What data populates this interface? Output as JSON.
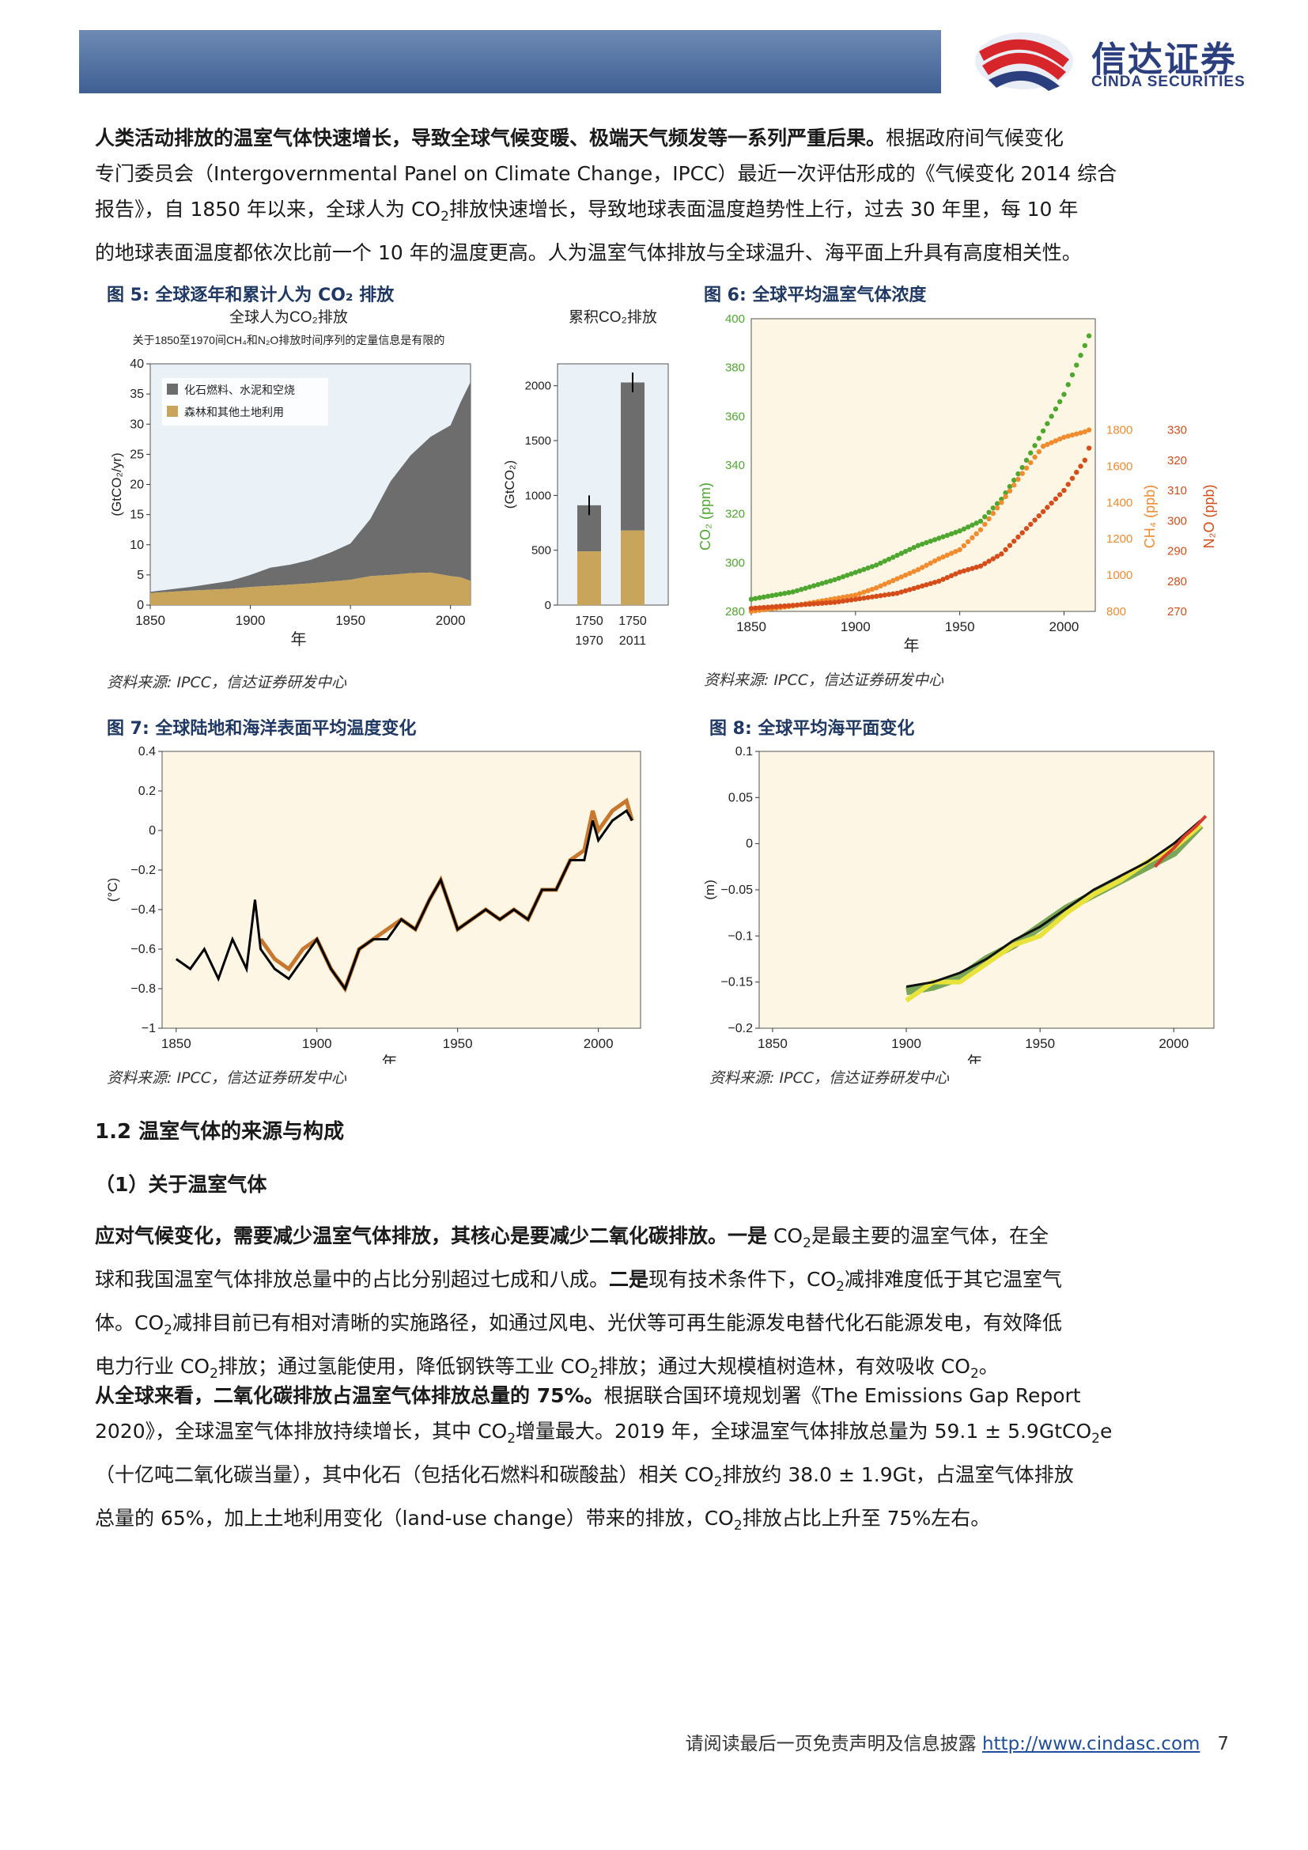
{
  "header": {
    "logo_cn": "信达证券",
    "logo_en": "CINDA SECURITIES",
    "brand_color": "#2b3f7f",
    "logo_red": "#d7262b"
  },
  "intro": {
    "lead_bold": "人类活动排放的温室气体快速增长，导致全球气候变暖、极端天气频发等一系列严重后果。",
    "l1_rest": "根据政府间气候变化",
    "l2": "专门委员会（Intergovernmental Panel on Climate Change，IPCC）最近一次评估形成的《气候变化 2014 综合",
    "l3a": "报告》，自 1850 年以来，全球人为 CO",
    "l3b": "排放快速增长，导致地球表面温度趋势性上行，过去 30 年里，每 10 年",
    "l4": "的地球表面温度都依次比前一个 10 年的温度更高。人为温室气体排放与全球温升、海平面上升具有高度相关性。",
    "sub2": "2"
  },
  "fig5": {
    "title": "图  5:  全球逐年和累计人为 CO₂ 排放",
    "source": "资料来源: IPCC，信达证券研发中心",
    "chart_data": {
      "type": "area",
      "title": "全球人为CO₂排放",
      "subtitle": "关于1850至1970间CH₄和N₂O排放时间序列的定量信息是有限的",
      "ylabel": "(GtCO₂/yr)",
      "xlabel": "年",
      "xlim": [
        1850,
        2010
      ],
      "ylim": [
        0,
        40
      ],
      "x_ticks": [
        "1850",
        "1900",
        "1950",
        "2000"
      ],
      "y_ticks": [
        "0",
        "5",
        "10",
        "15",
        "20",
        "25",
        "30",
        "35",
        "40"
      ],
      "series": [
        {
          "name": "化石燃料、水泥和空烧",
          "color": "#6d6d6d",
          "x": [
            1850,
            1870,
            1890,
            1900,
            1910,
            1920,
            1930,
            1940,
            1950,
            1960,
            1970,
            1980,
            1990,
            2000,
            2005,
            2010
          ],
          "values": [
            0.2,
            0.6,
            1.3,
            2,
            3,
            3.3,
            3.9,
            4.8,
            6,
            9.5,
            15.5,
            19.5,
            22.5,
            25,
            29,
            33
          ]
        },
        {
          "name": "森林和其他土地利用",
          "color": "#c8a55a",
          "x": [
            1850,
            1870,
            1890,
            1900,
            1910,
            1920,
            1930,
            1940,
            1950,
            1960,
            1970,
            1980,
            1990,
            2000,
            2005,
            2010
          ],
          "values": [
            2,
            2.4,
            2.7,
            3,
            3.2,
            3.4,
            3.6,
            3.9,
            4.2,
            4.8,
            5,
            5.3,
            5.4,
            4.8,
            4.6,
            4
          ]
        }
      ],
      "cumulative": {
        "title": "累积CO₂排放",
        "ylabel": "(GtCO₂)",
        "ylim": [
          0,
          2200
        ],
        "y_ticks": [
          "0",
          "500",
          "1000",
          "1500",
          "2000"
        ],
        "categories": [
          "1750\n1970",
          "1750\n2011"
        ],
        "fossil": [
          420,
          1350
        ],
        "land": [
          490,
          680
        ]
      }
    }
  },
  "fig6": {
    "title": "图  6:  全球平均温室气体浓度",
    "source": "资料来源: IPCC，信达证券研发中心",
    "chart_data": {
      "type": "scatter",
      "xlabel": "年",
      "xlim": [
        1850,
        2015
      ],
      "x_ticks": [
        "1850",
        "1900",
        "1950",
        "2000"
      ],
      "co2": {
        "label": "CO₂ (ppm)",
        "ylim": [
          280,
          400
        ],
        "ticks": [
          "280",
          "300",
          "320",
          "340",
          "360",
          "380",
          "400"
        ],
        "color": "#4ea72e",
        "x": [
          1850,
          1870,
          1890,
          1900,
          1910,
          1920,
          1930,
          1940,
          1950,
          1960,
          1970,
          1980,
          1990,
          2000,
          2010,
          2012
        ],
        "values": [
          285,
          288,
          293,
          296,
          299,
          303,
          307,
          310,
          313,
          317,
          326,
          339,
          354,
          369,
          389,
          393
        ]
      },
      "ch4": {
        "label": "CH₄ (ppb)",
        "ylim": [
          800,
          1800
        ],
        "ticks": [
          "800",
          "1000",
          "1200",
          "1400",
          "1600",
          "1800"
        ],
        "color": "#f28a2e",
        "x": [
          1850,
          1870,
          1890,
          1900,
          1910,
          1920,
          1930,
          1940,
          1950,
          1960,
          1970,
          1980,
          1990,
          2000,
          2010,
          2012
        ],
        "values": [
          800,
          830,
          870,
          890,
          930,
          980,
          1030,
          1090,
          1140,
          1250,
          1400,
          1560,
          1710,
          1760,
          1790,
          1800
        ]
      },
      "n2o": {
        "label": "N₂O (ppb)",
        "ylim": [
          270,
          330
        ],
        "ticks": [
          "270",
          "280",
          "290",
          "300",
          "310",
          "320",
          "330"
        ],
        "color": "#d64d1a",
        "x": [
          1850,
          1870,
          1890,
          1900,
          1910,
          1920,
          1930,
          1940,
          1950,
          1960,
          1970,
          1980,
          1990,
          2000,
          2010,
          2012
        ],
        "values": [
          271,
          272,
          273,
          274,
          275,
          276,
          278,
          280,
          283,
          285,
          289,
          296,
          303,
          310,
          320,
          324
        ]
      }
    }
  },
  "fig7": {
    "title": "图  7:  全球陆地和海洋表面平均温度变化",
    "source": "资料来源: IPCC，信达证券研发中心",
    "chart_data": {
      "type": "line",
      "ylabel": "(°C)",
      "xlabel": "年",
      "xlim": [
        1845,
        2015
      ],
      "ylim": [
        -1,
        0.4
      ],
      "x_ticks": [
        "1850",
        "1900",
        "1950",
        "2000"
      ],
      "y_ticks": [
        "−1",
        "−0.8",
        "−0.6",
        "−0.4",
        "−0.2",
        "0",
        "0.2",
        "0.4"
      ],
      "series": [
        {
          "name": "",
          "color": "#000000",
          "x": [
            1850,
            1855,
            1860,
            1865,
            1870,
            1875,
            1878,
            1880,
            1885,
            1890,
            1895,
            1900,
            1905,
            1910,
            1915,
            1920,
            1925,
            1930,
            1935,
            1940,
            1944,
            1950,
            1955,
            1960,
            1965,
            1970,
            1975,
            1980,
            1985,
            1990,
            1995,
            1998,
            2000,
            2005,
            2010,
            2012
          ],
          "values": [
            -0.65,
            -0.7,
            -0.6,
            -0.75,
            -0.55,
            -0.7,
            -0.35,
            -0.6,
            -0.7,
            -0.75,
            -0.65,
            -0.55,
            -0.7,
            -0.8,
            -0.6,
            -0.55,
            -0.55,
            -0.45,
            -0.5,
            -0.35,
            -0.25,
            -0.5,
            -0.45,
            -0.4,
            -0.45,
            -0.4,
            -0.45,
            -0.3,
            -0.3,
            -0.15,
            -0.15,
            0.05,
            -0.05,
            0.05,
            0.1,
            0.05
          ]
        },
        {
          "name": "",
          "color": "#c8782e",
          "x": [
            1880,
            1885,
            1890,
            1895,
            1900,
            1905,
            1910,
            1915,
            1920,
            1925,
            1930,
            1935,
            1940,
            1944,
            1950,
            1955,
            1960,
            1965,
            1970,
            1975,
            1980,
            1985,
            1990,
            1995,
            1998,
            2000,
            2005,
            2010,
            2012
          ],
          "values": [
            -0.55,
            -0.65,
            -0.7,
            -0.6,
            -0.55,
            -0.7,
            -0.8,
            -0.6,
            -0.55,
            -0.5,
            -0.45,
            -0.5,
            -0.35,
            -0.25,
            -0.5,
            -0.45,
            -0.4,
            -0.45,
            -0.4,
            -0.45,
            -0.3,
            -0.3,
            -0.15,
            -0.1,
            0.1,
            0,
            0.1,
            0.15,
            0.05
          ]
        }
      ]
    }
  },
  "fig8": {
    "title": "图  8:  全球平均海平面变化",
    "source": "资料来源: IPCC，信达证券研发中心",
    "chart_data": {
      "type": "line",
      "ylabel": "(m)",
      "xlabel": "年",
      "xlim": [
        1845,
        2015
      ],
      "ylim": [
        -0.2,
        0.1
      ],
      "x_ticks": [
        "1850",
        "1900",
        "1950",
        "2000"
      ],
      "y_ticks": [
        "−0.2",
        "−0.15",
        "−0.1",
        "−0.05",
        "0",
        "0.05",
        "0.1"
      ],
      "series": [
        {
          "name": "",
          "color": "#4c8c2b",
          "x": [
            1900,
            1910,
            1920,
            1930,
            1940,
            1950,
            1960,
            1970,
            1980,
            1990,
            2000,
            2010
          ],
          "values": [
            -0.16,
            -0.155,
            -0.145,
            -0.125,
            -0.11,
            -0.09,
            -0.07,
            -0.055,
            -0.04,
            -0.025,
            -0.01,
            0.02
          ]
        },
        {
          "name": "",
          "color": "#e8e23a",
          "x": [
            1900,
            1910,
            1920,
            1930,
            1940,
            1950,
            1960,
            1970,
            1980,
            1990,
            2000,
            2010
          ],
          "values": [
            -0.17,
            -0.15,
            -0.15,
            -0.13,
            -0.11,
            -0.1,
            -0.075,
            -0.055,
            -0.04,
            -0.02,
            -0.005,
            0.02
          ]
        },
        {
          "name": "",
          "color": "#111111",
          "x": [
            1900,
            1910,
            1920,
            1930,
            1940,
            1950,
            1960,
            1970,
            1980,
            1990,
            2000,
            2010
          ],
          "values": [
            -0.155,
            -0.15,
            -0.14,
            -0.125,
            -0.105,
            -0.09,
            -0.07,
            -0.05,
            -0.035,
            -0.02,
            0,
            0.025
          ]
        },
        {
          "name": "",
          "color": "#d63b2b",
          "x": [
            1993,
            1996,
            2000,
            2004,
            2008,
            2012
          ],
          "values": [
            -0.025,
            -0.015,
            -0.005,
            0.008,
            0.018,
            0.03
          ]
        }
      ]
    }
  },
  "section_1_2": {
    "heading": "1.2  温室气体的来源与构成",
    "sub1": "（1）关于温室气体"
  },
  "para2": {
    "lead": "应对气候变化，需要减少温室气体排放，其核心是要减少二氧化碳排放。",
    "one_bold": "一是",
    "l1_rest": " CO",
    "l1_tail": "是最主要的温室气体，在全",
    "l2a": "球和我国温室气体排放总量中的占比分别超过七成和八成。",
    "two_bold": "二是",
    "l2b": "现有技术条件下，CO",
    "l2c": "减排难度低于其它温室气",
    "l3a": "体。CO",
    "l3b": "减排目前已有相对清晰的实施路径，如通过风电、光伏等可再生能源发电替代化石能源发电，有效降低",
    "l4a": "电力行业 CO",
    "l4b": "排放；通过氢能使用，降低钢铁等工业 CO",
    "l4c": "排放；通过大规模植树造林，有效吸收 CO",
    "l4d": "。"
  },
  "para3": {
    "lead": "从全球来看，二氧化碳排放占温室气体排放总量的 75%。",
    "l1_rest": "根据联合国环境规划署《The Emissions Gap Report",
    "l2a": "2020》，全球温室气体排放持续增长，其中 CO",
    "l2b": "增量最大。2019 年，全球温室气体排放总量为 59.1 ± 5.9GtCO",
    "l2c": "e",
    "l3a": "（十亿吨二氧化碳当量），其中化石（包括化石燃料和碳酸盐）相关 CO",
    "l3b": "排放约 38.0 ± 1.9Gt，占温室气体排放",
    "l4a": "总量的 65%，加上土地利用变化（land-use change）带来的排放，CO",
    "l4b": "排放占比上升至 75%左右。"
  },
  "footer": {
    "text": "请阅读最后一页免责声明及信息披露 ",
    "link": "http://www.cindasc.com",
    "page": "7"
  }
}
